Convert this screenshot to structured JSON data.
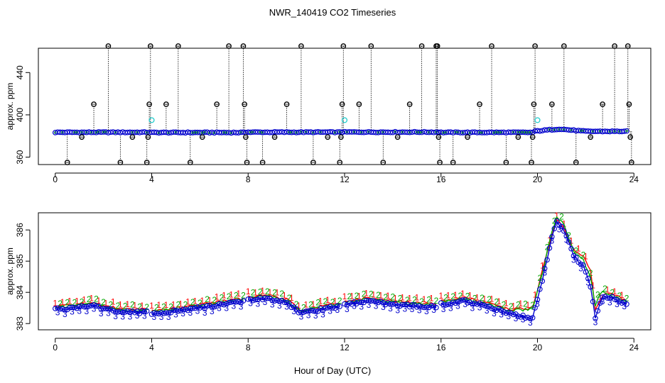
{
  "title": "NWR_140419  CO2 Timeseries",
  "xlabel": "Hour of Day (UTC)",
  "chart_data": [
    {
      "type": "scatter",
      "panel": "top",
      "ylabel": "approx. ppm",
      "xlim": [
        -0.7,
        24.7
      ],
      "ylim": [
        353,
        463
      ],
      "xticks": [
        0,
        4,
        8,
        12,
        16,
        20,
        24
      ],
      "yticks": [
        360,
        400,
        440
      ],
      "baseline": {
        "color": "#0000cc",
        "segments": [
          {
            "x0": 0.0,
            "x1": 3.9,
            "y": 383.5
          },
          {
            "x0": 3.9,
            "x1": 7.9,
            "y": 383.3
          },
          {
            "x0": 7.9,
            "x1": 11.9,
            "y": 383.6
          },
          {
            "x0": 11.9,
            "x1": 15.9,
            "y": 383.7
          },
          {
            "x0": 15.9,
            "x1": 19.9,
            "y": 383.4
          },
          {
            "x0": 19.9,
            "x1": 23.8,
            "y": 384.4
          }
        ],
        "hump": {
          "x0": 20.0,
          "x1": 22.0,
          "peak_x": 20.9,
          "peak_y": 386.6
        }
      },
      "spikes": [
        {
          "x": 0.5,
          "y": 355
        },
        {
          "x": 1.1,
          "y": 379
        },
        {
          "x": 1.6,
          "y": 410
        },
        {
          "x": 2.2,
          "y": 465
        },
        {
          "x": 2.7,
          "y": 355
        },
        {
          "x": 3.2,
          "y": 379
        },
        {
          "x": 3.8,
          "y": 355
        },
        {
          "x": 3.85,
          "y": 379
        },
        {
          "x": 3.9,
          "y": 410
        },
        {
          "x": 3.95,
          "y": 465
        },
        {
          "x": 4.6,
          "y": 410
        },
        {
          "x": 5.1,
          "y": 465
        },
        {
          "x": 5.6,
          "y": 355
        },
        {
          "x": 6.1,
          "y": 379
        },
        {
          "x": 6.7,
          "y": 410
        },
        {
          "x": 7.2,
          "y": 465
        },
        {
          "x": 7.8,
          "y": 465
        },
        {
          "x": 7.85,
          "y": 410
        },
        {
          "x": 7.9,
          "y": 379
        },
        {
          "x": 7.95,
          "y": 355
        },
        {
          "x": 8.6,
          "y": 355
        },
        {
          "x": 9.1,
          "y": 379
        },
        {
          "x": 9.6,
          "y": 410
        },
        {
          "x": 10.2,
          "y": 465
        },
        {
          "x": 10.7,
          "y": 355
        },
        {
          "x": 11.3,
          "y": 379
        },
        {
          "x": 11.8,
          "y": 355
        },
        {
          "x": 11.85,
          "y": 379
        },
        {
          "x": 11.9,
          "y": 410
        },
        {
          "x": 11.95,
          "y": 465
        },
        {
          "x": 12.6,
          "y": 410
        },
        {
          "x": 13.1,
          "y": 465
        },
        {
          "x": 13.6,
          "y": 355
        },
        {
          "x": 14.2,
          "y": 379
        },
        {
          "x": 14.7,
          "y": 410
        },
        {
          "x": 15.2,
          "y": 465
        },
        {
          "x": 15.8,
          "y": 465
        },
        {
          "x": 15.85,
          "y": 465
        },
        {
          "x": 15.9,
          "y": 379
        },
        {
          "x": 15.95,
          "y": 355
        },
        {
          "x": 16.5,
          "y": 355
        },
        {
          "x": 17.1,
          "y": 379
        },
        {
          "x": 17.6,
          "y": 410
        },
        {
          "x": 18.1,
          "y": 465
        },
        {
          "x": 18.7,
          "y": 355
        },
        {
          "x": 19.2,
          "y": 379
        },
        {
          "x": 19.75,
          "y": 355
        },
        {
          "x": 19.8,
          "y": 379
        },
        {
          "x": 19.85,
          "y": 410
        },
        {
          "x": 19.9,
          "y": 465
        },
        {
          "x": 20.6,
          "y": 410
        },
        {
          "x": 21.1,
          "y": 465
        },
        {
          "x": 21.6,
          "y": 355
        },
        {
          "x": 22.2,
          "y": 379
        },
        {
          "x": 22.7,
          "y": 410
        },
        {
          "x": 23.2,
          "y": 465
        },
        {
          "x": 23.75,
          "y": 465
        },
        {
          "x": 23.8,
          "y": 410
        },
        {
          "x": 23.85,
          "y": 379
        },
        {
          "x": 23.9,
          "y": 355
        }
      ],
      "cyan_points": [
        {
          "x": 4.0,
          "y": 395
        },
        {
          "x": 12.0,
          "y": 395
        },
        {
          "x": 20.0,
          "y": 395
        }
      ]
    },
    {
      "type": "line",
      "panel": "bottom",
      "ylabel": "approx. ppm",
      "xlim": [
        -0.7,
        24.7
      ],
      "ylim": [
        382.8,
        386.55
      ],
      "xticks": [
        0,
        4,
        8,
        12,
        16,
        20,
        24
      ],
      "yticks": [
        383,
        384,
        385,
        386
      ],
      "step_hours": 0.1,
      "gap_after_hours": [
        3.8,
        7.8,
        11.8,
        15.8
      ],
      "series": [
        {
          "name": "1",
          "color": "#ff0000",
          "anchors": [
            [
              0.0,
              383.55
            ],
            [
              0.8,
              383.6
            ],
            [
              1.5,
              383.68
            ],
            [
              2.1,
              383.55
            ],
            [
              2.7,
              383.48
            ],
            [
              3.8,
              383.45
            ],
            [
              4.0,
              383.42
            ],
            [
              5.0,
              383.5
            ],
            [
              6.0,
              383.6
            ],
            [
              7.0,
              383.72
            ],
            [
              7.8,
              383.8
            ],
            [
              8.0,
              383.85
            ],
            [
              8.8,
              383.92
            ],
            [
              9.6,
              383.78
            ],
            [
              10.2,
              383.42
            ],
            [
              11.0,
              383.55
            ],
            [
              11.8,
              383.65
            ],
            [
              12.0,
              383.72
            ],
            [
              13.0,
              383.82
            ],
            [
              14.0,
              383.72
            ],
            [
              15.0,
              383.66
            ],
            [
              15.8,
              383.64
            ],
            [
              16.0,
              383.72
            ],
            [
              17.0,
              383.82
            ],
            [
              17.8,
              383.68
            ],
            [
              18.8,
              383.45
            ],
            [
              19.8,
              383.5
            ],
            [
              20.2,
              384.7
            ],
            [
              20.6,
              385.8
            ],
            [
              20.8,
              386.35
            ],
            [
              21.1,
              386.05
            ],
            [
              21.5,
              385.35
            ],
            [
              21.9,
              385.15
            ],
            [
              22.2,
              384.7
            ],
            [
              22.4,
              383.4
            ],
            [
              22.7,
              383.9
            ],
            [
              23.1,
              383.95
            ],
            [
              23.7,
              383.72
            ]
          ]
        },
        {
          "name": "2",
          "color": "#00aa00",
          "anchors": [
            [
              0.0,
              383.52
            ],
            [
              0.8,
              383.57
            ],
            [
              1.5,
              383.66
            ],
            [
              2.1,
              383.52
            ],
            [
              2.7,
              383.45
            ],
            [
              3.8,
              383.42
            ],
            [
              4.0,
              383.38
            ],
            [
              5.0,
              383.46
            ],
            [
              6.0,
              383.57
            ],
            [
              7.0,
              383.69
            ],
            [
              7.8,
              383.77
            ],
            [
              8.0,
              383.82
            ],
            [
              8.8,
              383.88
            ],
            [
              9.6,
              383.74
            ],
            [
              10.2,
              383.4
            ],
            [
              11.0,
              383.52
            ],
            [
              11.8,
              383.62
            ],
            [
              12.0,
              383.7
            ],
            [
              13.0,
              383.79
            ],
            [
              14.0,
              383.7
            ],
            [
              15.0,
              383.62
            ],
            [
              15.8,
              383.6
            ],
            [
              16.0,
              383.69
            ],
            [
              17.0,
              383.79
            ],
            [
              17.8,
              383.65
            ],
            [
              18.8,
              383.42
            ],
            [
              19.8,
              383.46
            ],
            [
              20.2,
              384.6
            ],
            [
              20.6,
              385.95
            ],
            [
              20.8,
              386.45
            ],
            [
              21.1,
              386.15
            ],
            [
              21.5,
              385.3
            ],
            [
              21.9,
              385.05
            ],
            [
              22.2,
              384.45
            ],
            [
              22.4,
              383.6
            ],
            [
              22.7,
              384.05
            ],
            [
              23.1,
              383.9
            ],
            [
              23.7,
              383.7
            ]
          ]
        },
        {
          "name": "3",
          "color": "#0000cc",
          "anchors": [
            [
              0.0,
              383.45
            ],
            [
              0.8,
              383.5
            ],
            [
              1.5,
              383.6
            ],
            [
              2.1,
              383.45
            ],
            [
              2.7,
              383.38
            ],
            [
              3.8,
              383.36
            ],
            [
              4.0,
              383.32
            ],
            [
              5.0,
              383.4
            ],
            [
              6.0,
              383.5
            ],
            [
              7.0,
              383.62
            ],
            [
              7.8,
              383.7
            ],
            [
              8.0,
              383.76
            ],
            [
              8.8,
              383.82
            ],
            [
              9.6,
              383.68
            ],
            [
              10.2,
              383.32
            ],
            [
              11.0,
              383.45
            ],
            [
              11.8,
              383.55
            ],
            [
              12.0,
              383.62
            ],
            [
              13.0,
              383.72
            ],
            [
              14.0,
              383.62
            ],
            [
              15.0,
              383.55
            ],
            [
              15.8,
              383.52
            ],
            [
              16.0,
              383.62
            ],
            [
              17.0,
              383.72
            ],
            [
              17.8,
              383.58
            ],
            [
              18.8,
              383.35
            ],
            [
              19.8,
              383.15
            ],
            [
              20.2,
              384.4
            ],
            [
              20.6,
              385.75
            ],
            [
              20.8,
              386.25
            ],
            [
              21.1,
              386.0
            ],
            [
              21.5,
              385.15
            ],
            [
              21.9,
              384.85
            ],
            [
              22.2,
              384.2
            ],
            [
              22.4,
              383.2
            ],
            [
              22.7,
              383.85
            ],
            [
              23.1,
              383.85
            ],
            [
              23.7,
              383.62
            ]
          ]
        }
      ]
    }
  ]
}
